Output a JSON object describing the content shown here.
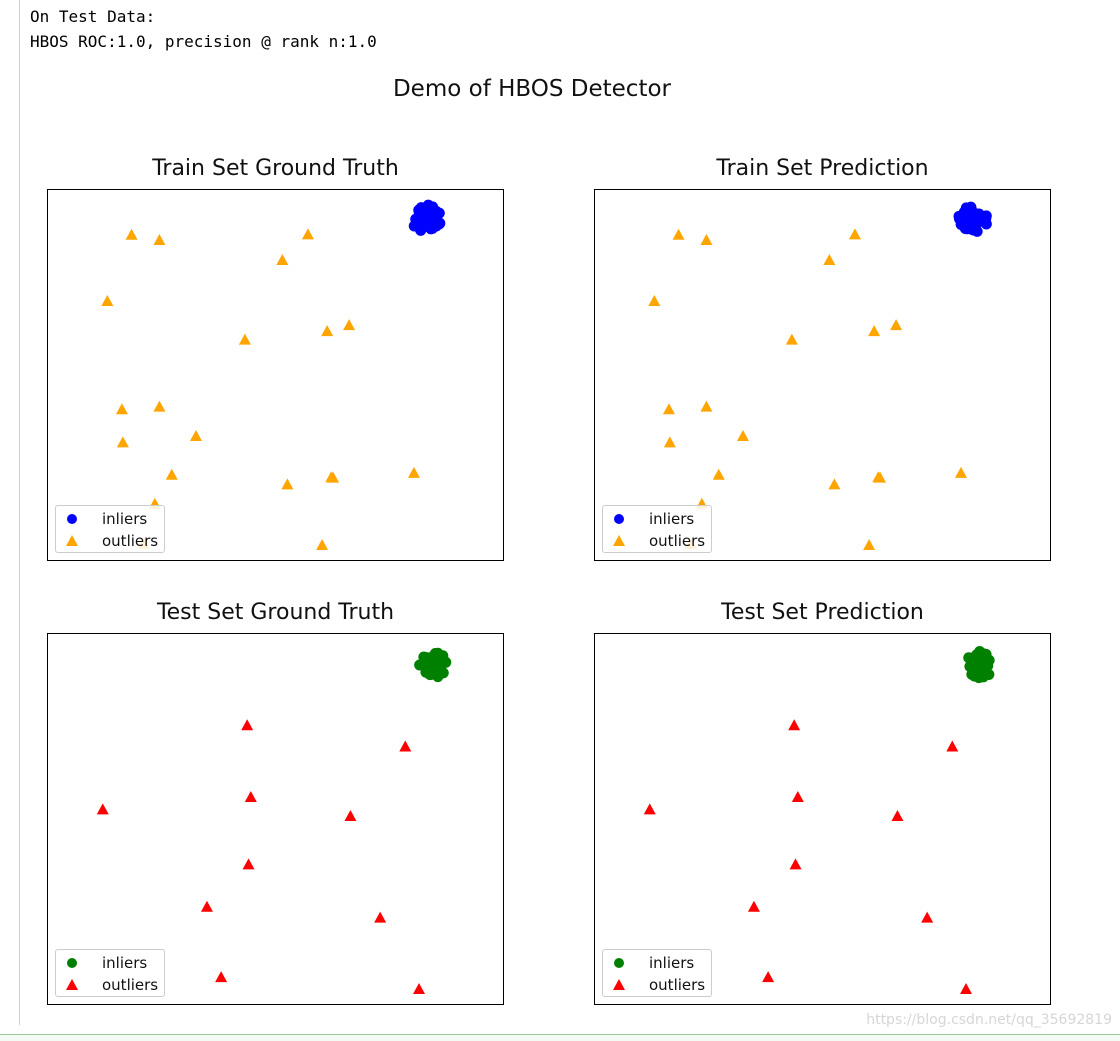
{
  "output_lines": [
    "On Test Data:",
    "HBOS ROC:1.0, precision @ rank n:1.0"
  ],
  "figure_title": "Demo of HBOS Detector",
  "watermark": "https://blog.csdn.net/qq_35692819",
  "chart_data": [
    {
      "type": "scatter",
      "title": "Train Set Ground Truth",
      "xlabel": "",
      "ylabel": "",
      "xlim": [
        0,
        100
      ],
      "ylim": [
        0,
        100
      ],
      "grid": false,
      "legend_placement": "lower-left",
      "series": [
        {
          "name": "inliers",
          "marker": "circle",
          "color": "#0000ff",
          "center": [
            83,
            92
          ],
          "radius": 3.2,
          "count": 40
        },
        {
          "name": "outliers",
          "marker": "triangle",
          "color": "#ffa500",
          "x": [
            18.5,
            24.6,
            57.1,
            51.5,
            13.2,
            43.3,
            61.3,
            66.1,
            16.4,
            24.6,
            16.6,
            32.6,
            27.3,
            52.6,
            62.2,
            62.6,
            80.3,
            23.6,
            21.2,
            60.2
          ],
          "y": [
            87.7,
            86.3,
            87.8,
            80.9,
            69.9,
            59.5,
            61.8,
            63.4,
            40.8,
            41.5,
            31.9,
            33.6,
            23.2,
            20.6,
            22.5,
            22.4,
            23.7,
            15.4,
            4.6,
            4.3
          ]
        }
      ]
    },
    {
      "type": "scatter",
      "title": "Train Set Prediction",
      "xlabel": "",
      "ylabel": "",
      "xlim": [
        0,
        100
      ],
      "ylim": [
        0,
        100
      ],
      "grid": false,
      "legend_placement": "lower-left",
      "series": [
        {
          "name": "inliers",
          "marker": "circle",
          "color": "#0000ff",
          "center": [
            83,
            92
          ],
          "radius": 3.2,
          "count": 40
        },
        {
          "name": "outliers",
          "marker": "triangle",
          "color": "#ffa500",
          "x": [
            18.5,
            24.6,
            57.1,
            51.5,
            13.2,
            43.3,
            61.3,
            66.1,
            16.4,
            24.6,
            16.6,
            32.6,
            27.3,
            52.6,
            62.2,
            62.6,
            80.3,
            23.6,
            21.2,
            60.2
          ],
          "y": [
            87.7,
            86.3,
            87.8,
            80.9,
            69.9,
            59.5,
            61.8,
            63.4,
            40.8,
            41.5,
            31.9,
            33.6,
            23.2,
            20.6,
            22.5,
            22.4,
            23.7,
            15.4,
            4.6,
            4.3
          ]
        }
      ]
    },
    {
      "type": "scatter",
      "title": "Test Set Ground Truth",
      "xlabel": "",
      "ylabel": "",
      "xlim": [
        0,
        100
      ],
      "ylim": [
        0,
        100
      ],
      "grid": false,
      "legend_placement": "lower-left",
      "series": [
        {
          "name": "inliers",
          "marker": "circle",
          "color": "#008000",
          "center": [
            84.5,
            91.5
          ],
          "radius": 3.0,
          "count": 30
        },
        {
          "name": "outliers",
          "marker": "triangle",
          "color": "#ff0000",
          "x": [
            43.8,
            78.4,
            12.2,
            44.6,
            66.4,
            44.1,
            35.0,
            72.9,
            38.1,
            81.4
          ],
          "y": [
            75.2,
            69.5,
            52.6,
            55.9,
            50.8,
            37.8,
            26.4,
            23.5,
            7.5,
            4.3
          ]
        }
      ]
    },
    {
      "type": "scatter",
      "title": "Test Set Prediction",
      "xlabel": "",
      "ylabel": "",
      "xlim": [
        0,
        100
      ],
      "ylim": [
        0,
        100
      ],
      "grid": false,
      "legend_placement": "lower-left",
      "series": [
        {
          "name": "inliers",
          "marker": "circle",
          "color": "#008000",
          "center": [
            84.5,
            91.5
          ],
          "radius": 3.0,
          "count": 30
        },
        {
          "name": "outliers",
          "marker": "triangle",
          "color": "#ff0000",
          "x": [
            43.8,
            78.4,
            12.2,
            44.6,
            66.4,
            44.1,
            35.0,
            72.9,
            38.1,
            81.4
          ],
          "y": [
            75.2,
            69.5,
            52.6,
            55.9,
            50.8,
            37.8,
            26.4,
            23.5,
            7.5,
            4.3
          ]
        }
      ]
    }
  ]
}
